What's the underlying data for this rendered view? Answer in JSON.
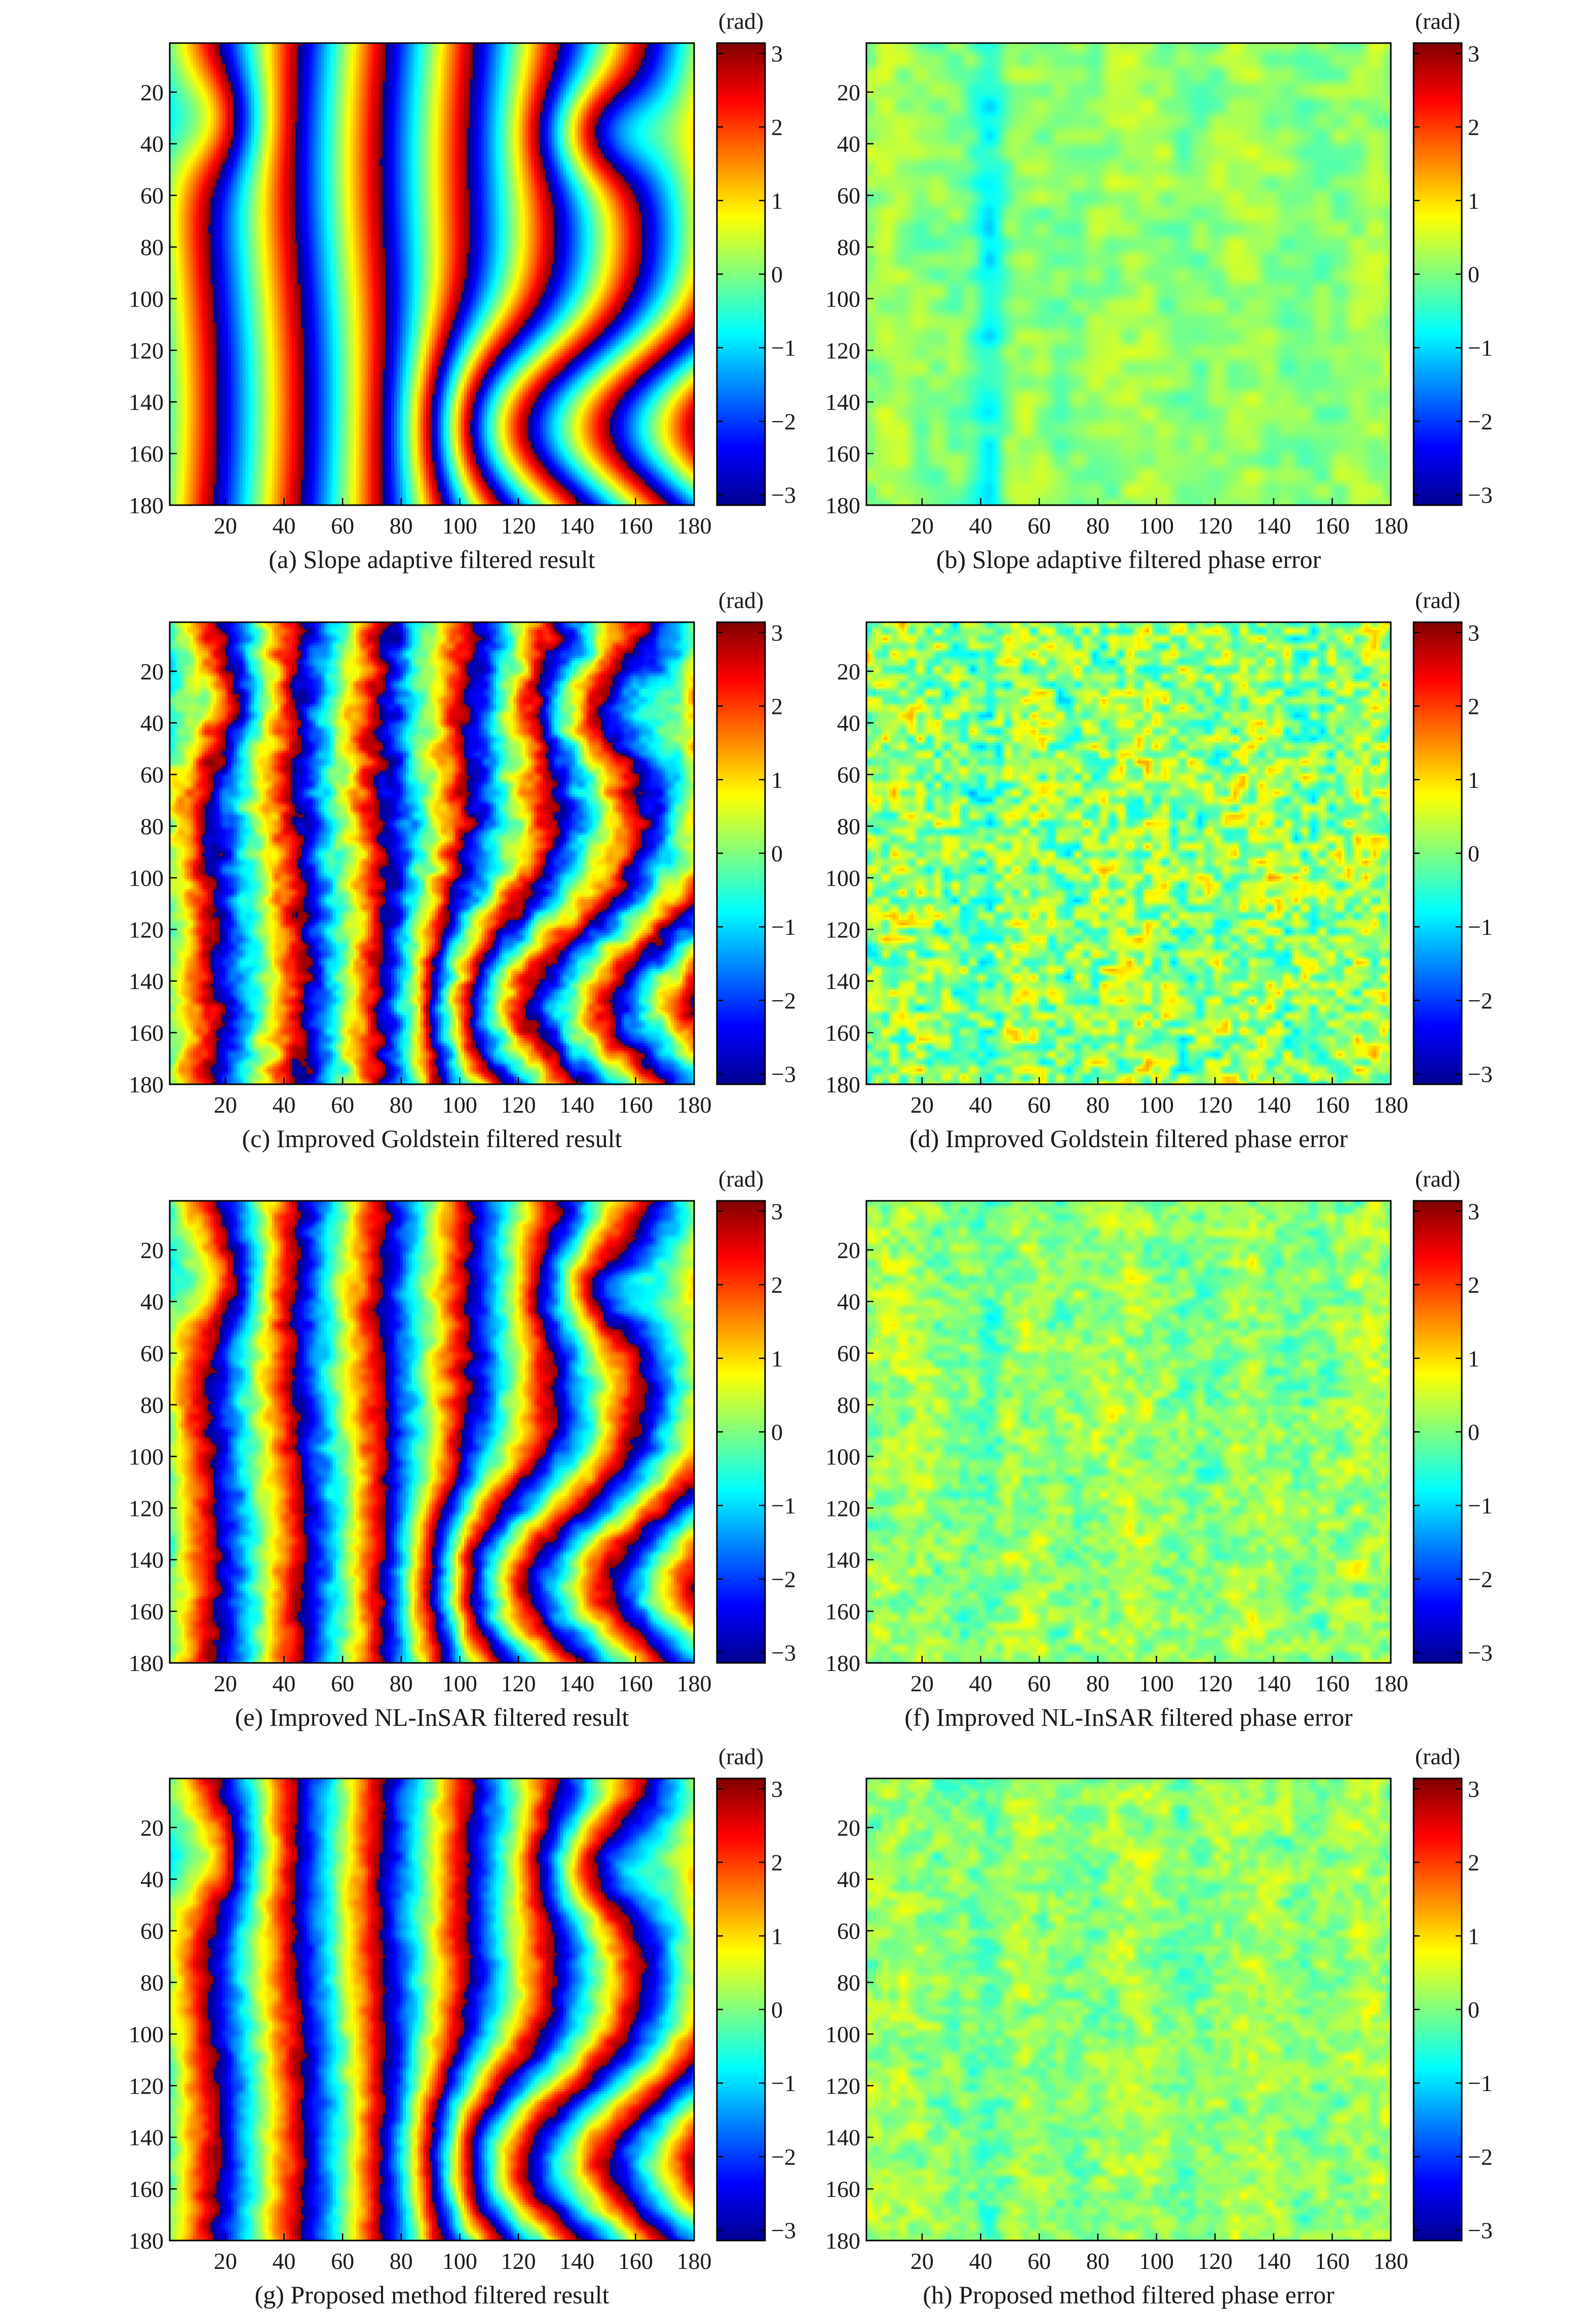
{
  "colorbar": {
    "unit": "(rad)",
    "range": [
      -3.14,
      3.14
    ],
    "ticks": [
      3,
      2,
      1,
      0,
      -1,
      -2,
      -3
    ],
    "tick_labels": [
      "3",
      "2",
      "1",
      "0",
      "−1",
      "−2",
      "−3"
    ]
  },
  "axes": {
    "x_ticks": [
      20,
      40,
      60,
      80,
      100,
      120,
      140,
      160,
      180
    ],
    "x_tick_labels": [
      "20",
      "40",
      "60",
      "80",
      "100",
      "120",
      "140",
      "160",
      "180"
    ],
    "y_ticks": [
      20,
      40,
      60,
      80,
      100,
      120,
      140,
      160,
      180
    ],
    "y_tick_labels": [
      "20",
      "40",
      "60",
      "80",
      "100",
      "120",
      "140",
      "160",
      "180"
    ],
    "xlim": [
      1,
      180
    ],
    "ylim": [
      1,
      180
    ],
    "y_reversed": true
  },
  "chart_data": [
    {
      "type": "heatmap",
      "panel": "a",
      "kind": "result",
      "noise": 0.0,
      "caption": "(a) Slope adaptive filtered result",
      "xlim": [
        1,
        180
      ],
      "ylim": [
        1,
        180
      ],
      "colorbar_range": [
        -3.14,
        3.14
      ],
      "value_unit": "rad"
    },
    {
      "type": "heatmap",
      "panel": "b",
      "kind": "error",
      "noise": 0.0,
      "caption": "(b) Slope adaptive filtered phase error",
      "xlim": [
        1,
        180
      ],
      "ylim": [
        1,
        180
      ],
      "colorbar_range": [
        -3.14,
        3.14
      ],
      "value_unit": "rad"
    },
    {
      "type": "heatmap",
      "panel": "c",
      "kind": "result",
      "noise": 0.55,
      "caption": "(c) Improved Goldstein filtered result",
      "xlim": [
        1,
        180
      ],
      "ylim": [
        1,
        180
      ],
      "colorbar_range": [
        -3.14,
        3.14
      ],
      "value_unit": "rad"
    },
    {
      "type": "heatmap",
      "panel": "d",
      "kind": "error",
      "noise": 0.55,
      "caption": "(d) Improved Goldstein filtered phase error",
      "xlim": [
        1,
        180
      ],
      "ylim": [
        1,
        180
      ],
      "colorbar_range": [
        -3.14,
        3.14
      ],
      "value_unit": "rad"
    },
    {
      "type": "heatmap",
      "panel": "e",
      "kind": "result",
      "noise": 0.35,
      "caption": "(e) Improved NL-InSAR filtered result",
      "xlim": [
        1,
        180
      ],
      "ylim": [
        1,
        180
      ],
      "colorbar_range": [
        -3.14,
        3.14
      ],
      "value_unit": "rad"
    },
    {
      "type": "heatmap",
      "panel": "f",
      "kind": "error",
      "noise": 0.25,
      "caption": "(f) Improved NL-InSAR filtered phase error",
      "xlim": [
        1,
        180
      ],
      "ylim": [
        1,
        180
      ],
      "colorbar_range": [
        -3.14,
        3.14
      ],
      "value_unit": "rad"
    },
    {
      "type": "heatmap",
      "panel": "g",
      "kind": "result",
      "noise": 0.25,
      "caption": "(g) Proposed method filtered result",
      "xlim": [
        1,
        180
      ],
      "ylim": [
        1,
        180
      ],
      "colorbar_range": [
        -3.14,
        3.14
      ],
      "value_unit": "rad"
    },
    {
      "type": "heatmap",
      "panel": "h",
      "kind": "error",
      "noise": 0.2,
      "caption": "(h) Proposed method filtered phase error",
      "xlim": [
        1,
        180
      ],
      "ylim": [
        1,
        180
      ],
      "colorbar_range": [
        -3.14,
        3.14
      ],
      "value_unit": "rad"
    }
  ]
}
